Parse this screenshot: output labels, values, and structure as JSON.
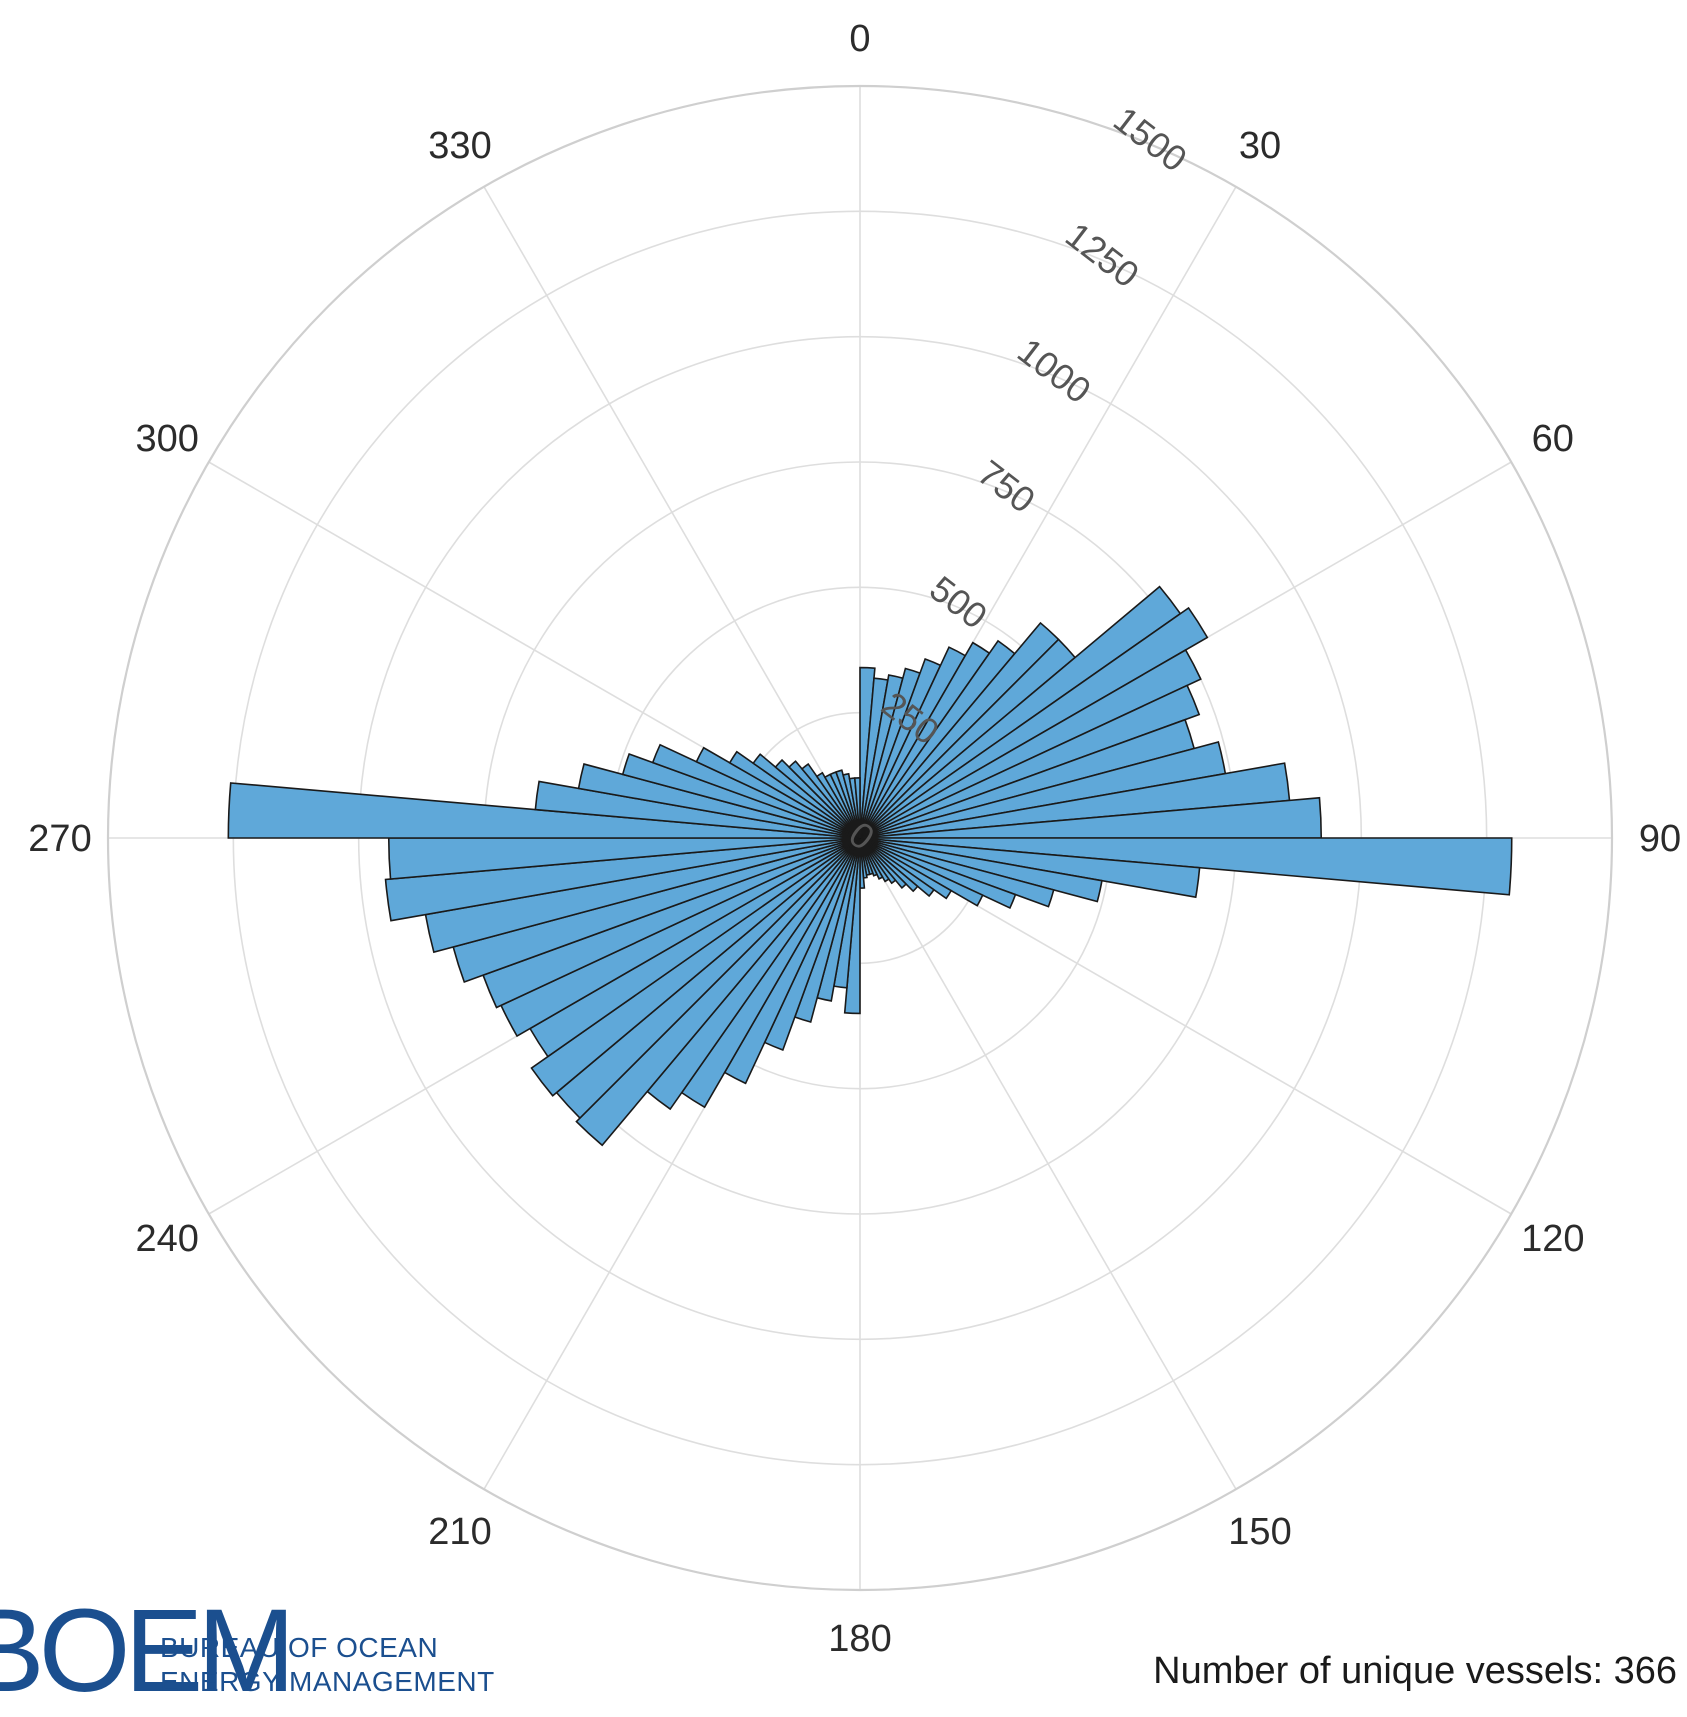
{
  "chart_data": {
    "type": "polar-bar",
    "angle_unit": "degrees",
    "angle_zero": "top",
    "angle_direction": "clockwise",
    "angular_ticks": [
      "0",
      "30",
      "60",
      "90",
      "120",
      "150",
      "180",
      "210",
      "240",
      "270",
      "300",
      "330"
    ],
    "radial_ticks": [
      "0",
      "250",
      "500",
      "750",
      "1000",
      "1250",
      "1500"
    ],
    "rlim": [
      0,
      1500
    ],
    "grid": true,
    "bin_width": 5,
    "bin_starts": [
      0,
      5,
      10,
      15,
      20,
      25,
      30,
      35,
      40,
      45,
      50,
      55,
      60,
      65,
      70,
      75,
      80,
      85,
      90,
      95,
      100,
      105,
      110,
      115,
      120,
      125,
      130,
      135,
      140,
      145,
      150,
      155,
      160,
      165,
      170,
      175,
      180,
      185,
      190,
      195,
      200,
      205,
      210,
      215,
      220,
      225,
      230,
      235,
      240,
      245,
      250,
      255,
      260,
      265,
      270,
      275,
      280,
      285,
      290,
      295,
      300,
      305,
      310,
      315,
      320,
      325,
      330,
      335,
      340,
      345,
      350,
      355
    ],
    "values": [
      340,
      320,
      330,
      350,
      380,
      420,
      450,
      480,
      560,
      560,
      780,
      800,
      750,
      720,
      690,
      740,
      860,
      920,
      1300,
      680,
      490,
      400,
      330,
      270,
      210,
      180,
      150,
      130,
      110,
      100,
      90,
      80,
      75,
      75,
      80,
      100,
      350,
      300,
      330,
      380,
      450,
      540,
      620,
      660,
      800,
      790,
      800,
      760,
      790,
      800,
      840,
      880,
      950,
      940,
      1260,
      650,
      570,
      490,
      440,
      360,
      300,
      260,
      220,
      200,
      180,
      150,
      140,
      140,
      140,
      130,
      120,
      120
    ],
    "colors": {
      "bar_fill": "#5fa8d9",
      "bar_edge": "#1a1a1a",
      "grid": "#dedede"
    }
  },
  "logo": {
    "mark": "BOEM",
    "line1": "BUREAU OF OCEAN",
    "line2": "ENERGY MANAGEMENT"
  },
  "footnote": "Number of unique vessels: 366"
}
